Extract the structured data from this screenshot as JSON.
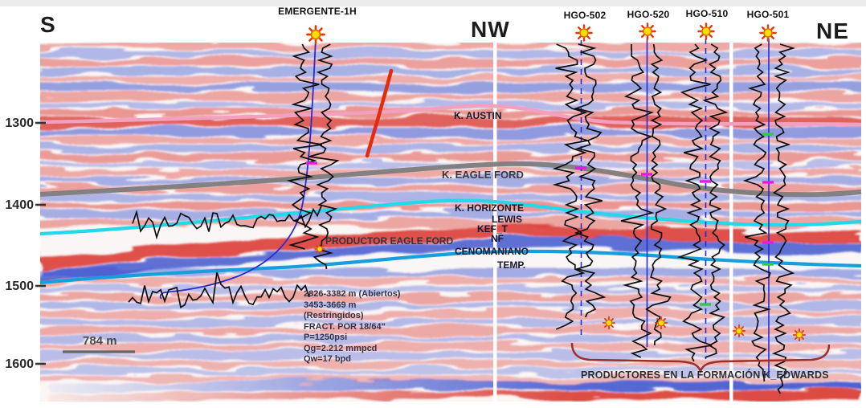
{
  "figure": {
    "orientation": {
      "left": "S",
      "middle": "NW",
      "right": "NE"
    },
    "wells": [
      {
        "name": "EMERGENTE-1H"
      },
      {
        "name": "HGO-502"
      },
      {
        "name": "HGO-520"
      },
      {
        "name": "HGO-510"
      },
      {
        "name": "HGO-501"
      }
    ],
    "depth_ticks": [
      "1300",
      "1400",
      "1500",
      "1600"
    ],
    "scale_bar_label": "784 m",
    "horizon_labels": {
      "austin": "K. AUSTIN",
      "eagle_ford": "K. EAGLE FORD",
      "horizonte": "K. HORIZONTE",
      "lewis": "LEWIS",
      "kef_t": "KEF_T",
      "nf": "NF",
      "cenomaniano": "CENOMANIANO",
      "temp": "TEMP."
    },
    "annotations": {
      "producer_eagle_ford": "PRODUCTOR EAGLE FORD",
      "producers_edwards": "PRODUCTORES EN LA FORMACIÓN K_EDWARDS",
      "well_data": [
        "2826-3382 m (Abiertos)",
        "3453-3669 m",
        "(Restringidos)",
        "FRACT. POR 18/64\"",
        "P=1250psi",
        "Qg=2.212 mmpcd",
        "Qw=17 bpd"
      ]
    }
  },
  "icons": {
    "well_symbol": "sun-icon"
  },
  "colors": {
    "seismic_red": "#d93a32",
    "seismic_blue": "#3a50cc",
    "horizon_austin": "#f29fc0",
    "horizon_eagle_ford": "#7d7d7d",
    "horizon_upper_cyan": "#23d8e8",
    "horizon_lower_cyan": "#169fdc",
    "fault": "#e22c0d",
    "well_path_blue": "#2b2bd0",
    "marker_magenta": "#ee14ee",
    "marker_green": "#2fca46",
    "brace": "#9e2f2a",
    "sun_fill": "#ffdf00",
    "sun_ray": "#e93605"
  }
}
